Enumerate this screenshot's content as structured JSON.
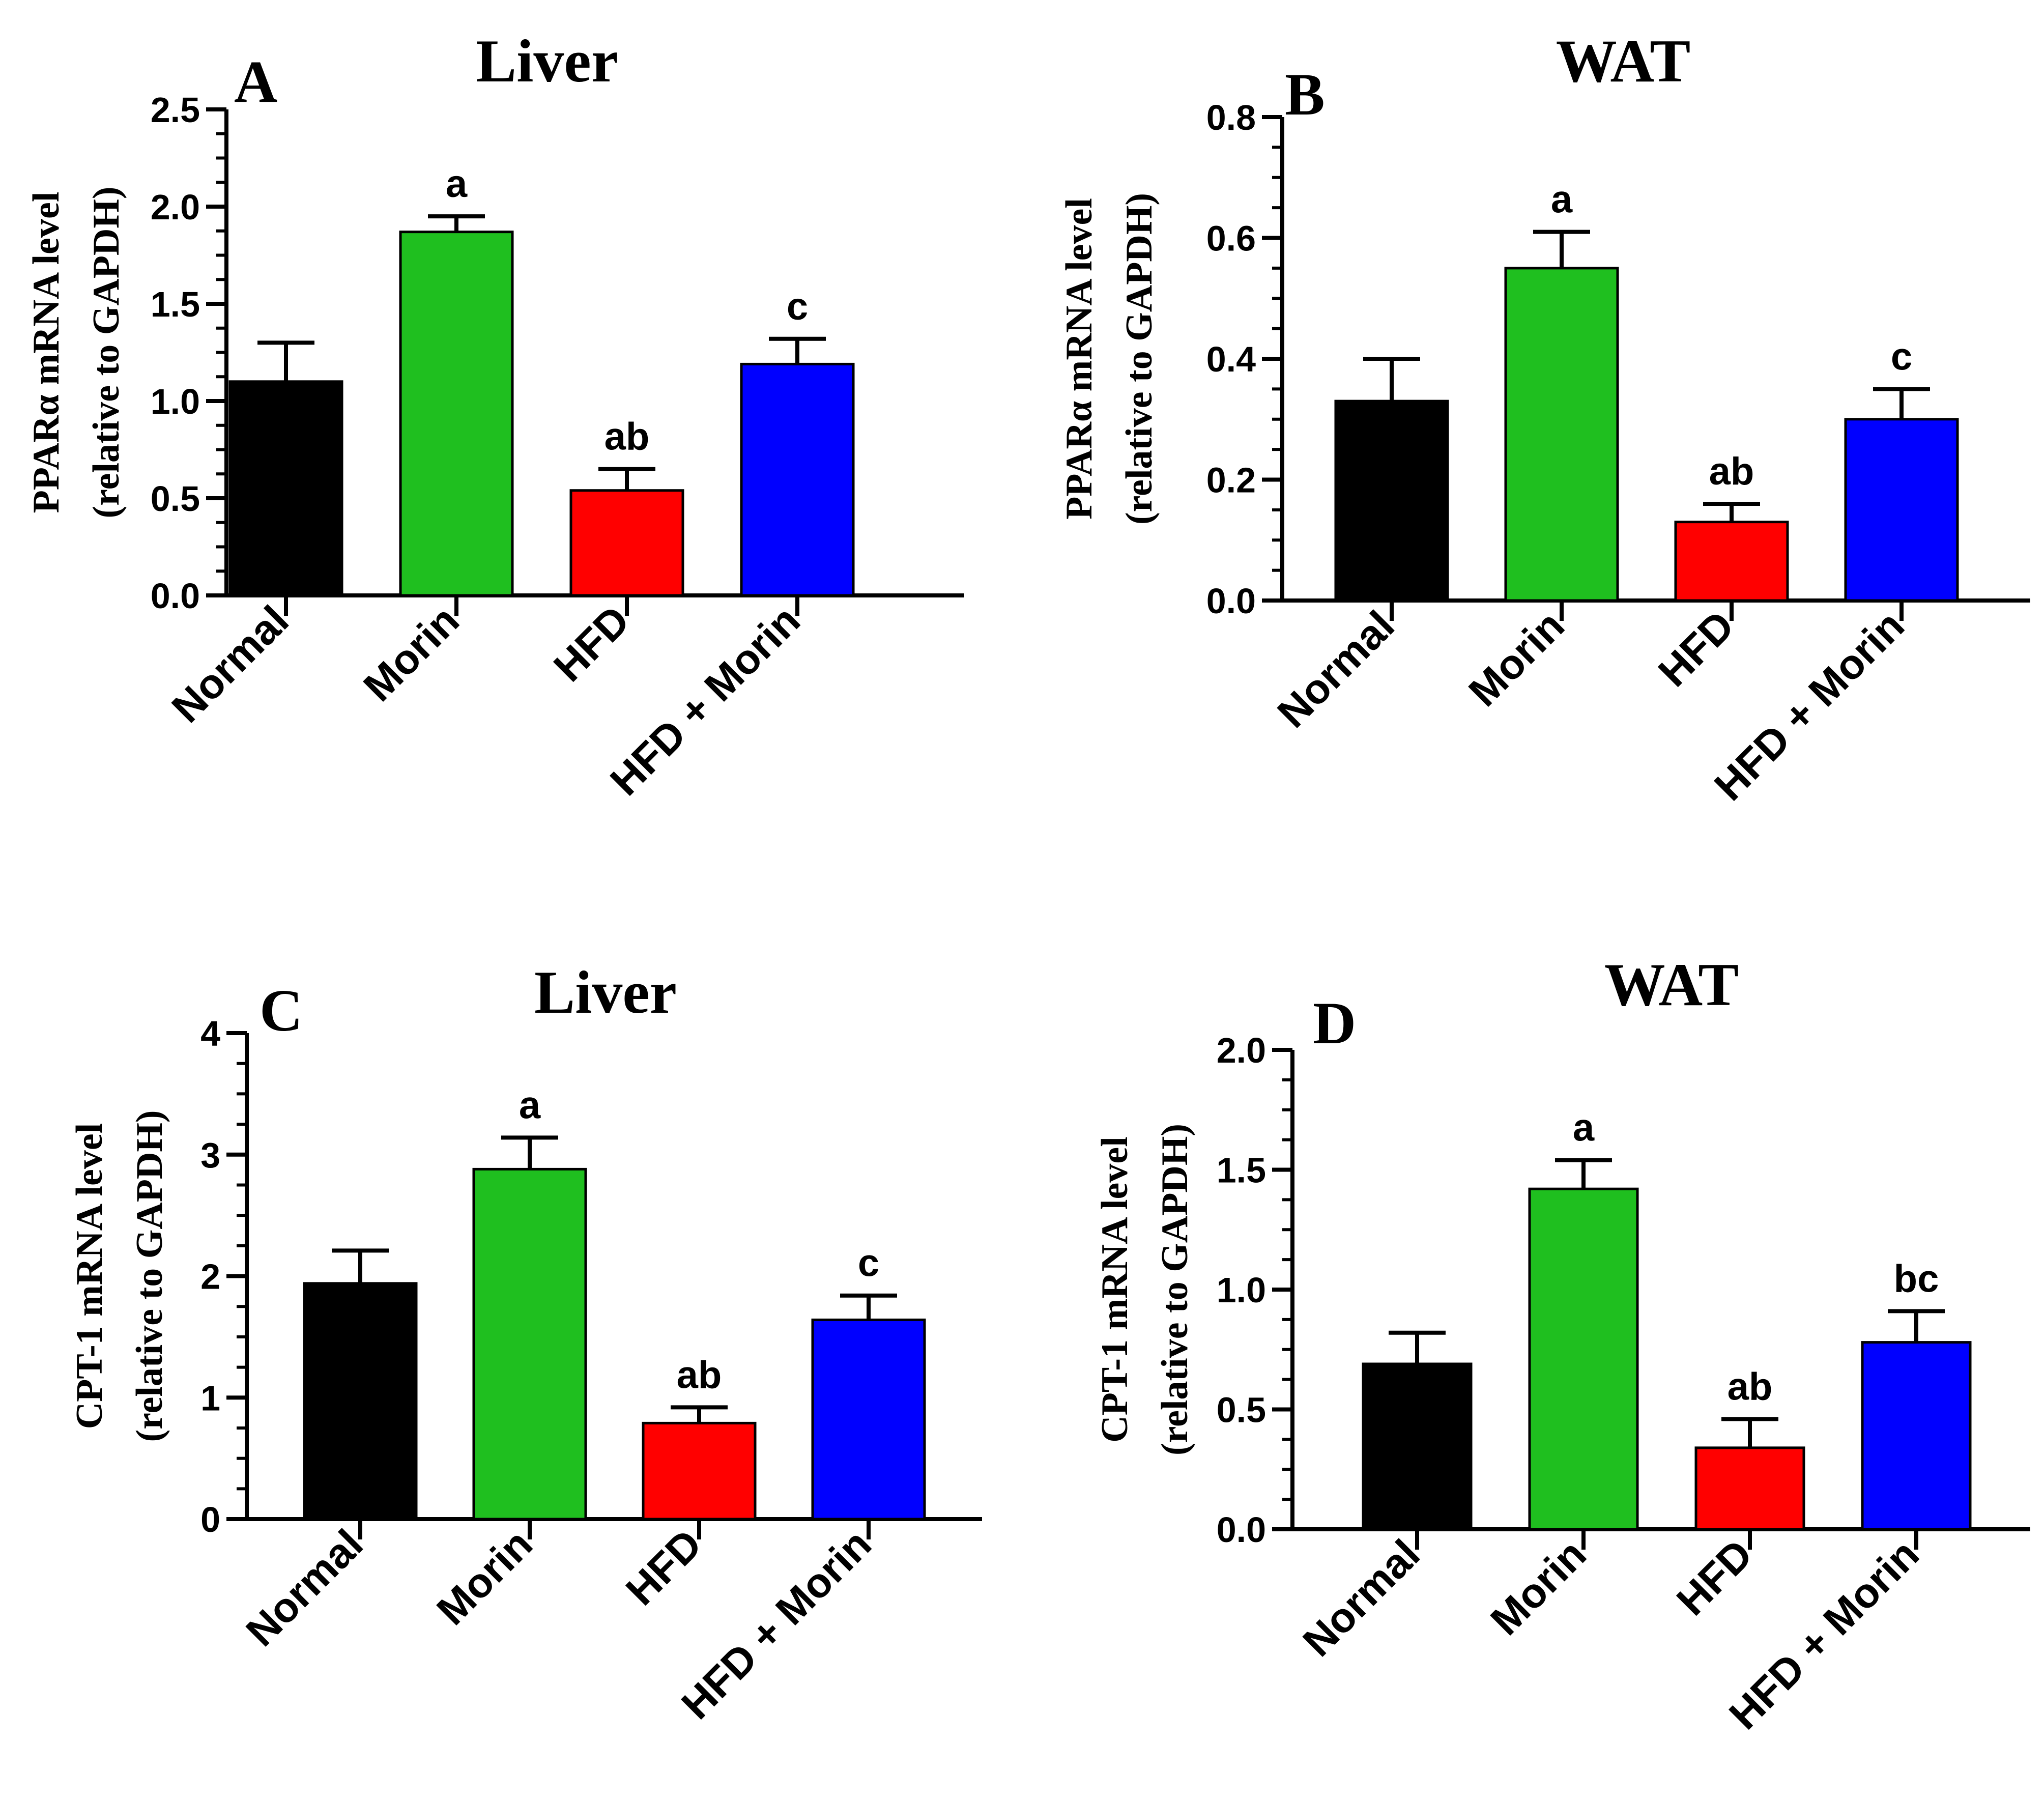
{
  "chart_data": [
    {
      "type": "bar",
      "panel_label": "A",
      "title": "Liver",
      "ylabel_line1": "PPARα mRNA level",
      "ylabel_line2": "(relative to GAPDH)",
      "categories": [
        "Normal",
        "Morin",
        "HFD",
        "HFD + Morin"
      ],
      "values": [
        1.1,
        1.87,
        0.54,
        1.19
      ],
      "errors": [
        0.2,
        0.08,
        0.11,
        0.13
      ],
      "significance": [
        "",
        "a",
        "ab",
        "c"
      ],
      "colors": [
        "#000000",
        "#1fbf1f",
        "#ff0000",
        "#0000ff"
      ],
      "ylim": [
        0,
        2.5
      ],
      "yticks": [
        0,
        0.5,
        1.0,
        1.5,
        2.0,
        2.5
      ],
      "ytick_labels": [
        "0.0",
        "0.5",
        "1.0",
        "1.5",
        "2.0",
        "2.5"
      ],
      "minor_per_major": 4
    },
    {
      "type": "bar",
      "panel_label": "B",
      "title": "WAT",
      "ylabel_line1": "PPARα mRNA level",
      "ylabel_line2": "(relative to GAPDH)",
      "categories": [
        "Normal",
        "Morin",
        "HFD",
        "HFD + Morin"
      ],
      "values": [
        0.33,
        0.55,
        0.13,
        0.3
      ],
      "errors": [
        0.07,
        0.06,
        0.03,
        0.05
      ],
      "significance": [
        "",
        "a",
        "ab",
        "c"
      ],
      "colors": [
        "#000000",
        "#1fbf1f",
        "#ff0000",
        "#0000ff"
      ],
      "ylim": [
        0,
        0.8
      ],
      "yticks": [
        0,
        0.2,
        0.4,
        0.6,
        0.8
      ],
      "ytick_labels": [
        "0.0",
        "0.2",
        "0.4",
        "0.6",
        "0.8"
      ],
      "minor_per_major": 4
    },
    {
      "type": "bar",
      "panel_label": "C",
      "title": "Liver",
      "ylabel_line1": "CPT-1 mRNA level",
      "ylabel_line2": "(relative to GAPDH)",
      "categories": [
        "Normal",
        "Morin",
        "HFD",
        "HFD + Morin"
      ],
      "values": [
        1.94,
        2.88,
        0.79,
        1.64
      ],
      "errors": [
        0.27,
        0.26,
        0.13,
        0.2
      ],
      "significance": [
        "",
        "a",
        "ab",
        "c"
      ],
      "colors": [
        "#000000",
        "#1fbf1f",
        "#ff0000",
        "#0000ff"
      ],
      "ylim": [
        0,
        4
      ],
      "yticks": [
        0,
        1,
        2,
        3,
        4
      ],
      "ytick_labels": [
        "0",
        "1",
        "2",
        "3",
        "4"
      ],
      "minor_per_major": 4
    },
    {
      "type": "bar",
      "panel_label": "D",
      "title": "WAT",
      "ylabel_line1": "CPT-1 mRNA level",
      "ylabel_line2": "(relative to GAPDH)",
      "categories": [
        "Normal",
        "Morin",
        "HFD",
        "HFD + Morin"
      ],
      "values": [
        0.69,
        1.42,
        0.34,
        0.78
      ],
      "errors": [
        0.13,
        0.12,
        0.12,
        0.13
      ],
      "significance": [
        "",
        "a",
        "ab",
        "bc"
      ],
      "colors": [
        "#000000",
        "#1fbf1f",
        "#ff0000",
        "#0000ff"
      ],
      "ylim": [
        0,
        2.0
      ],
      "yticks": [
        0,
        0.5,
        1.0,
        1.5,
        2.0
      ],
      "ytick_labels": [
        "0.0",
        "0.5",
        "1.0",
        "1.5",
        "2.0"
      ],
      "minor_per_major": 4
    }
  ]
}
